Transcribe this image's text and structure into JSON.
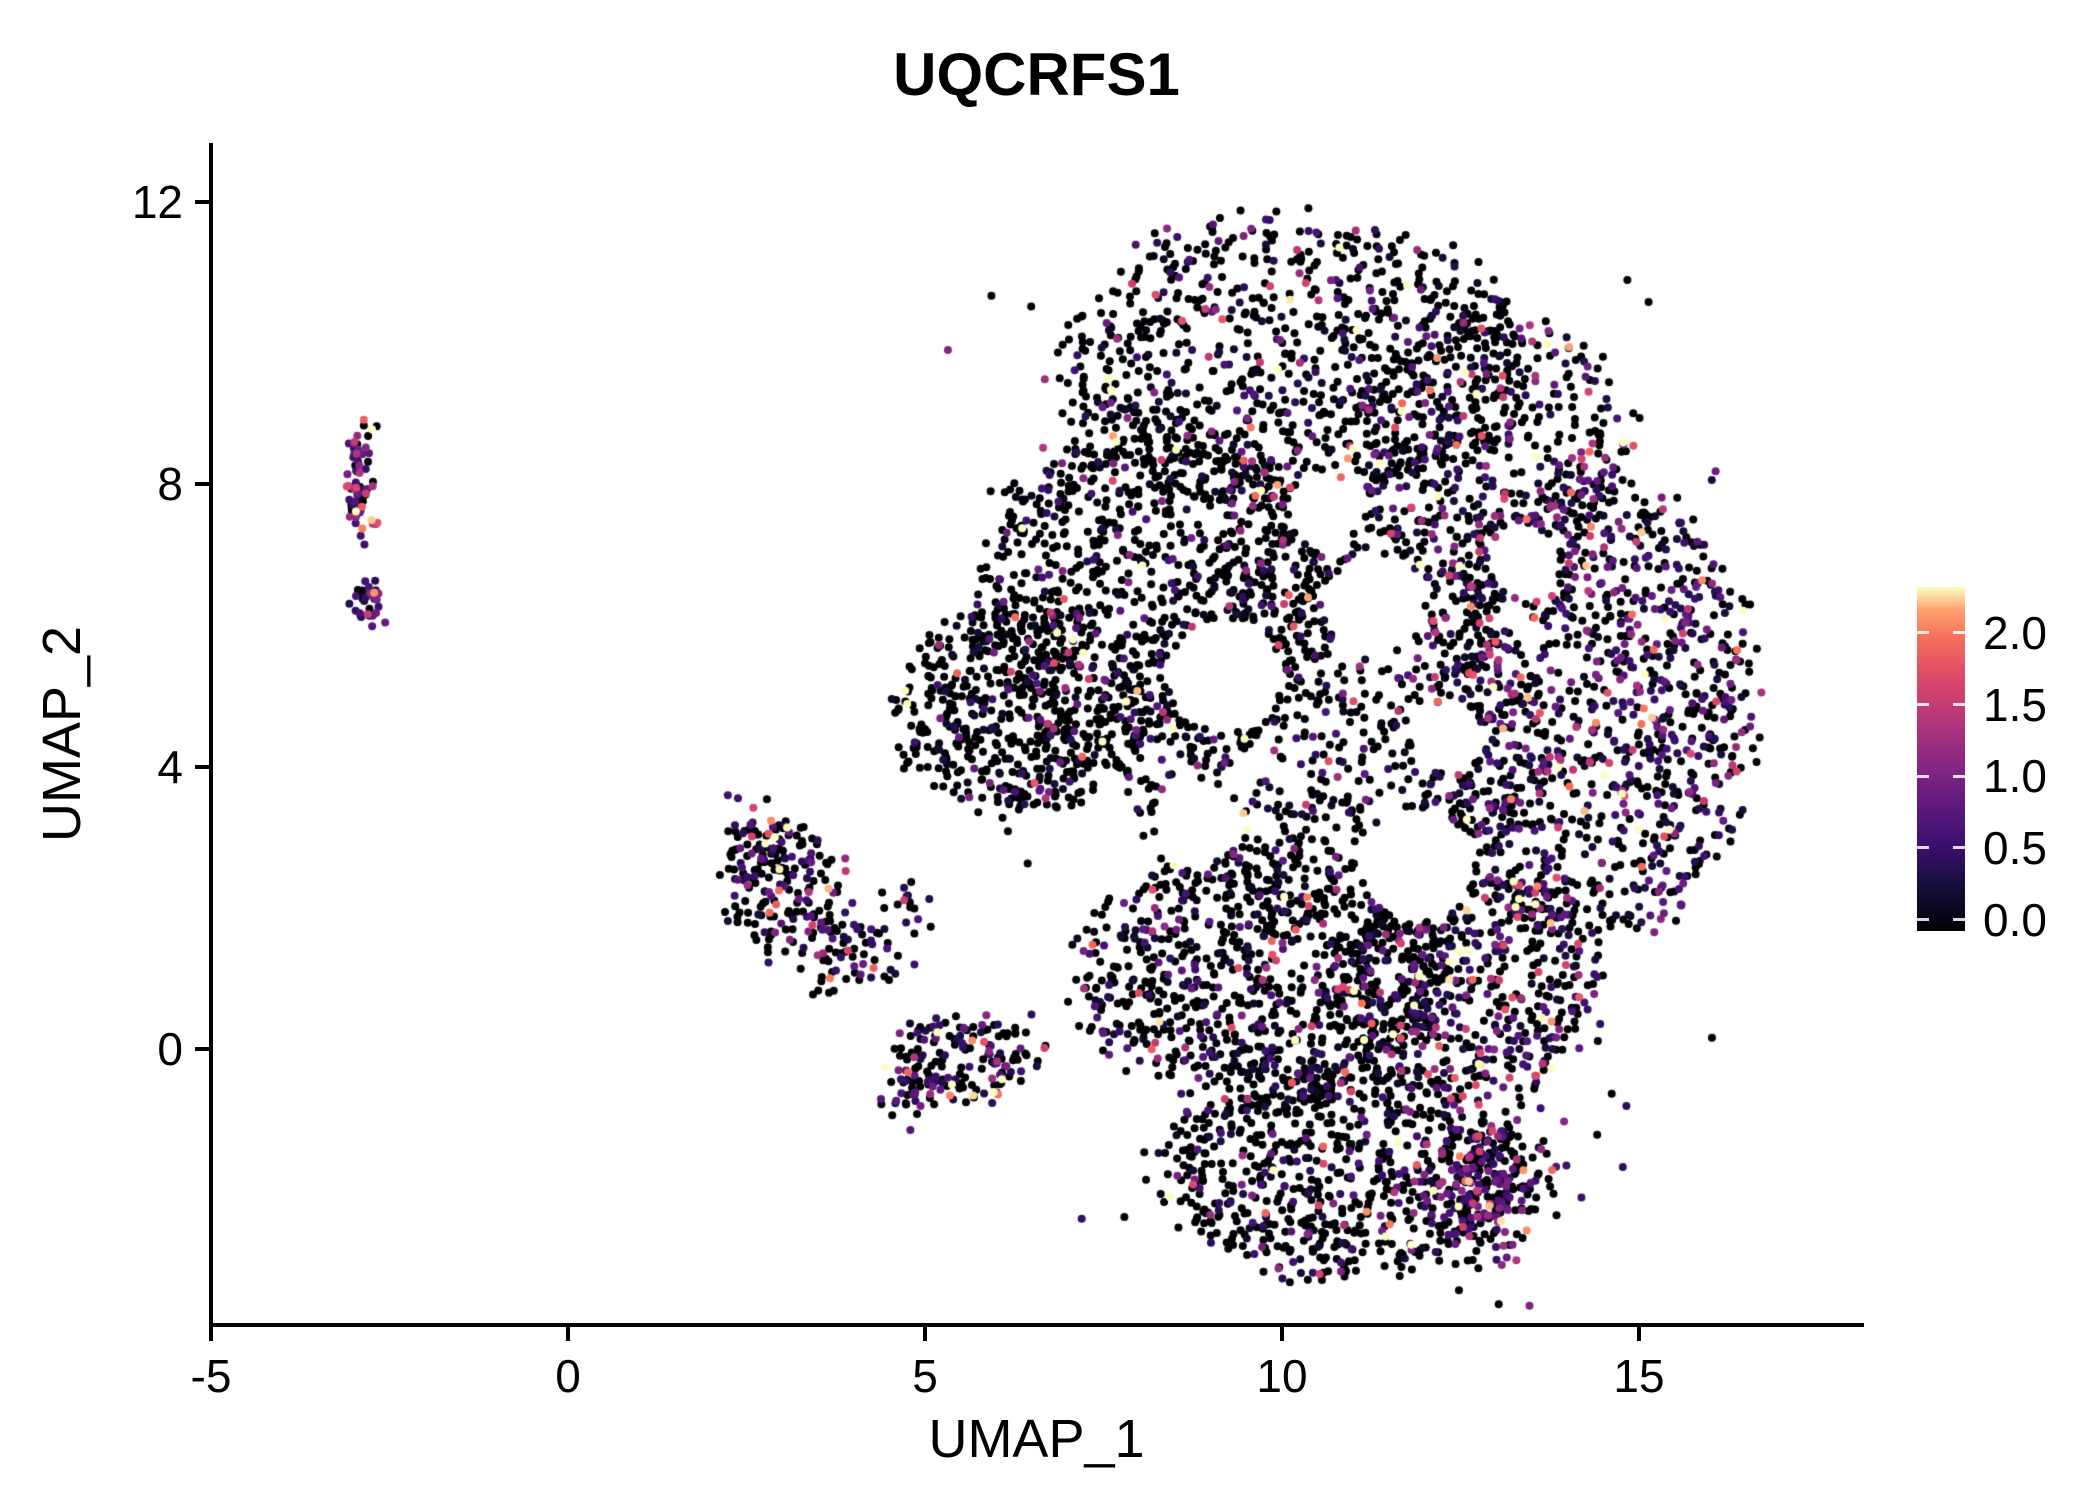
{
  "chart_data": {
    "type": "scatter",
    "title": "UQCRFS1",
    "xlabel": "UMAP_1",
    "ylabel": "UMAP_2",
    "xlim": [
      -5.8,
      18.1
    ],
    "ylim": [
      -3.9,
      12.8
    ],
    "grid": false,
    "legend_position": "right",
    "x_ticks": {
      "values": [
        -5,
        0,
        5,
        10,
        15
      ],
      "labels": [
        "-5",
        "0",
        "5",
        "10",
        "15"
      ]
    },
    "y_ticks": {
      "values": [
        0,
        4,
        8,
        12
      ],
      "labels": [
        "0",
        "4",
        "8",
        "12"
      ]
    },
    "legend": {
      "tick_values": [
        2.0,
        1.5,
        1.0,
        0.5,
        0.0
      ],
      "tick_labels": [
        "2.0",
        "1.5",
        "1.0",
        "0.5",
        "0.0"
      ],
      "value_range": [
        0,
        2.3
      ]
    },
    "colormap": {
      "name": "magma",
      "stops": [
        {
          "t": 0.0,
          "color": "#000004"
        },
        {
          "t": 0.12,
          "color": "#140e36"
        },
        {
          "t": 0.25,
          "color": "#3b0f70"
        },
        {
          "t": 0.38,
          "color": "#641a80"
        },
        {
          "t": 0.5,
          "color": "#8c2981"
        },
        {
          "t": 0.62,
          "color": "#b73779"
        },
        {
          "t": 0.74,
          "color": "#de4968"
        },
        {
          "t": 0.85,
          "color": "#f66e5c"
        },
        {
          "t": 0.93,
          "color": "#fe9f6d"
        },
        {
          "t": 1.0,
          "color": "#fcfdbf"
        }
      ]
    },
    "seed": 42,
    "point_radius": 4.0,
    "n_points_total": 7688,
    "clusters": [
      {
        "name": "left-islet-top",
        "shape": "gauss",
        "cx": -2.92,
        "cy": 8.05,
        "sx": 0.12,
        "sy": 0.42,
        "n": 75,
        "p0": 0.3,
        "vmin": 0.5,
        "scale": 0.55
      },
      {
        "name": "left-islet-bottom",
        "shape": "gauss",
        "cx": -2.78,
        "cy": 6.32,
        "sx": 0.11,
        "sy": 0.16,
        "n": 32,
        "p0": 0.35,
        "vmin": 0.4,
        "scale": 0.5
      },
      {
        "name": "mid-left-main",
        "shape": "ellipse",
        "cx": 2.95,
        "cy": 2.35,
        "rx": 0.75,
        "ry": 0.95,
        "n": 150,
        "p0": 0.62,
        "vmin": 0.3,
        "scale": 0.6
      },
      {
        "name": "mid-left-tail",
        "shape": "ellipse",
        "cx": 3.9,
        "cy": 1.35,
        "rx": 0.75,
        "ry": 0.55,
        "n": 70,
        "p0": 0.62,
        "vmin": 0.25,
        "scale": 0.6
      },
      {
        "name": "mid-left-knot",
        "shape": "gauss",
        "cx": 2.62,
        "cy": 2.95,
        "sx": 0.28,
        "sy": 0.3,
        "n": 45,
        "p0": 0.55,
        "vmin": 0.3,
        "scale": 0.6
      },
      {
        "name": "bridge-dots",
        "shape": "gauss",
        "cx": 4.65,
        "cy": 1.95,
        "sx": 0.3,
        "sy": 0.2,
        "n": 16,
        "p0": 0.6,
        "vmin": 0.3,
        "scale": 0.5
      },
      {
        "name": "small-lower-left",
        "shape": "ellipse",
        "cx": 5.6,
        "cy": -0.05,
        "rx": 1.0,
        "ry": 0.6,
        "n": 140,
        "p0": 0.58,
        "vmin": 0.3,
        "scale": 0.6
      },
      {
        "name": "small-lower-left-knot",
        "shape": "gauss",
        "cx": 4.85,
        "cy": -0.5,
        "sx": 0.22,
        "sy": 0.28,
        "n": 40,
        "p0": 0.42,
        "vmin": 0.4,
        "scale": 0.6
      },
      {
        "name": "main-top-cap",
        "shape": "ellipse",
        "cx": 10.2,
        "cy": 9.7,
        "rx": 3.3,
        "ry": 2.1,
        "n": 850,
        "p0": 0.74,
        "vmin": 0.15,
        "scale": 0.6
      },
      {
        "name": "main-upper-left",
        "shape": "ellipse",
        "cx": 8.2,
        "cy": 6.4,
        "rx": 2.5,
        "ry": 2.5,
        "n": 950,
        "p0": 0.8,
        "vmin": 0.1,
        "scale": 0.55
      },
      {
        "name": "main-left-tip",
        "shape": "ellipse",
        "cx": 6.3,
        "cy": 4.8,
        "rx": 1.7,
        "ry": 1.5,
        "n": 480,
        "p0": 0.78,
        "vmin": 0.1,
        "scale": 0.55
      },
      {
        "name": "main-center",
        "shape": "ellipse",
        "cx": 10.5,
        "cy": 4.6,
        "rx": 2.8,
        "ry": 3.0,
        "n": 800,
        "p0": 0.78,
        "vmin": 0.12,
        "scale": 0.6
      },
      {
        "name": "main-right-band",
        "shape": "ellipse",
        "cx": 14.3,
        "cy": 4.8,
        "rx": 2.3,
        "ry": 3.3,
        "n": 1150,
        "p0": 0.5,
        "vmin": 0.2,
        "scale": 0.65
      },
      {
        "name": "main-upper-right",
        "shape": "ellipse",
        "cx": 12.9,
        "cy": 8.4,
        "rx": 2.0,
        "ry": 2.1,
        "n": 520,
        "p0": 0.62,
        "vmin": 0.2,
        "scale": 0.7
      },
      {
        "name": "main-lower-mid",
        "shape": "ellipse",
        "cx": 9.8,
        "cy": 1.1,
        "rx": 2.7,
        "ry": 1.8,
        "n": 850,
        "p0": 0.74,
        "vmin": 0.15,
        "scale": 0.6
      },
      {
        "name": "main-lower-right",
        "shape": "ellipse",
        "cx": 12.6,
        "cy": 0.9,
        "rx": 1.9,
        "ry": 1.6,
        "n": 520,
        "p0": 0.55,
        "vmin": 0.2,
        "scale": 0.7
      },
      {
        "name": "bottom-lobe",
        "shape": "ellipse",
        "cx": 10.9,
        "cy": -1.7,
        "rx": 2.6,
        "ry": 1.5,
        "n": 700,
        "p0": 0.74,
        "vmin": 0.15,
        "scale": 0.6
      },
      {
        "name": "bottom-right-arc",
        "shape": "gauss",
        "cx": 12.8,
        "cy": -2.0,
        "sx": 0.55,
        "sy": 0.55,
        "n": 230,
        "p0": 0.4,
        "vmin": 0.45,
        "scale": 0.6
      },
      {
        "name": "scatter-noise",
        "shape": "rect",
        "x0": 4.5,
        "x1": 16.2,
        "y0": -2.8,
        "y1": 11.2,
        "n": 70,
        "p0": 0.7,
        "vmin": 0.15,
        "scale": 0.6
      }
    ],
    "holes": [
      {
        "x": 9.2,
        "y": 5.3,
        "r": 0.8
      },
      {
        "x": 11.3,
        "y": 6.3,
        "r": 0.7
      },
      {
        "x": 11.9,
        "y": 2.6,
        "r": 0.8
      },
      {
        "x": 8.8,
        "y": 3.2,
        "r": 0.6
      },
      {
        "x": 13.4,
        "y": 6.9,
        "r": 0.5
      },
      {
        "x": 10.6,
        "y": 7.6,
        "r": 0.5
      },
      {
        "x": 12.3,
        "y": 4.4,
        "r": 0.5
      }
    ]
  }
}
